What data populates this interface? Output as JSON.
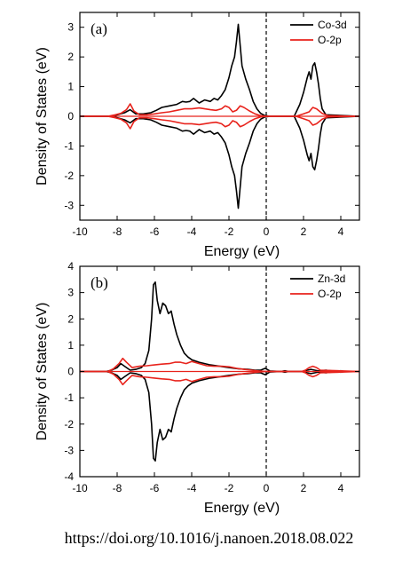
{
  "caption": "https://doi.org/10.1016/j.nanoen.2018.08.022",
  "chart_data": [
    {
      "type": "line",
      "panel_label": "(a)",
      "xlabel": "Energy (eV)",
      "ylabel": "Density of States (eV)",
      "xlim": [
        -10,
        5
      ],
      "ylim": [
        -3.5,
        3.5
      ],
      "xticks": [
        -10,
        -8,
        -6,
        -4,
        -2,
        0,
        2,
        4
      ],
      "yticks": [
        -3,
        -2,
        -1,
        0,
        1,
        2,
        3
      ],
      "fermi_level": 0,
      "legend_position": "top-right",
      "series": [
        {
          "name": "Co-3d",
          "color": "#000000",
          "mirrored": true,
          "x": [
            -10,
            -8.3,
            -8.0,
            -7.6,
            -7.3,
            -7.0,
            -6.6,
            -6.2,
            -5.9,
            -5.6,
            -5.2,
            -4.8,
            -4.5,
            -4.3,
            -4.1,
            -3.9,
            -3.6,
            -3.3,
            -3.0,
            -2.8,
            -2.6,
            -2.4,
            -2.2,
            -2.0,
            -1.85,
            -1.7,
            -1.6,
            -1.5,
            -1.4,
            -1.3,
            -1.1,
            -0.9,
            -0.7,
            -0.5,
            -0.3,
            -0.1,
            0.2,
            1.5,
            1.8,
            2.0,
            2.2,
            2.3,
            2.4,
            2.5,
            2.6,
            2.7,
            2.8,
            2.9,
            3.0,
            3.2,
            5
          ],
          "y": [
            0,
            0,
            0.05,
            0.12,
            0.22,
            0.08,
            0.08,
            0.12,
            0.2,
            0.3,
            0.35,
            0.4,
            0.5,
            0.48,
            0.5,
            0.6,
            0.45,
            0.55,
            0.5,
            0.6,
            0.55,
            0.7,
            0.9,
            1.3,
            1.7,
            2.0,
            2.5,
            3.1,
            2.4,
            1.7,
            1.25,
            0.9,
            0.5,
            0.25,
            0.1,
            0.03,
            0,
            0,
            0.4,
            0.8,
            1.3,
            1.5,
            1.25,
            1.7,
            1.8,
            1.5,
            1.1,
            0.6,
            0.25,
            0.05,
            0
          ]
        },
        {
          "name": "O-2p",
          "color": "#e8231c",
          "mirrored": true,
          "x": [
            -10,
            -8.5,
            -8.1,
            -7.8,
            -7.5,
            -7.3,
            -7.1,
            -6.8,
            -6.4,
            -6.0,
            -5.6,
            -5.2,
            -4.8,
            -4.4,
            -4.0,
            -3.6,
            -3.3,
            -3.0,
            -2.7,
            -2.4,
            -2.2,
            -2.0,
            -1.8,
            -1.6,
            -1.4,
            -1.2,
            -0.9,
            -0.6,
            -0.3,
            0,
            1.6,
            2.0,
            2.3,
            2.5,
            2.7,
            3.0,
            3.3,
            5
          ],
          "y": [
            0,
            0,
            0.05,
            0.1,
            0.22,
            0.42,
            0.18,
            0.05,
            0.05,
            0.08,
            0.12,
            0.15,
            0.2,
            0.25,
            0.25,
            0.28,
            0.25,
            0.22,
            0.2,
            0.25,
            0.35,
            0.3,
            0.15,
            0.2,
            0.35,
            0.3,
            0.18,
            0.08,
            0.02,
            0,
            0,
            0.08,
            0.15,
            0.3,
            0.25,
            0.1,
            0.02,
            0
          ]
        }
      ]
    },
    {
      "type": "line",
      "panel_label": "(b)",
      "xlabel": "Energy (eV)",
      "ylabel": "Density of States (eV)",
      "xlim": [
        -10,
        5
      ],
      "ylim": [
        -4,
        4
      ],
      "xticks": [
        -10,
        -8,
        -6,
        -4,
        -2,
        0,
        2,
        4
      ],
      "yticks": [
        -4,
        -3,
        -2,
        -1,
        0,
        1,
        2,
        3,
        4
      ],
      "fermi_level": 0,
      "legend_position": "top-right",
      "series": [
        {
          "name": "Zn-3d",
          "color": "#000000",
          "mirrored": true,
          "x": [
            -10,
            -8.6,
            -8.3,
            -8.0,
            -7.8,
            -7.6,
            -7.3,
            -7.0,
            -6.7,
            -6.5,
            -6.3,
            -6.15,
            -6.05,
            -5.95,
            -5.85,
            -5.7,
            -5.55,
            -5.4,
            -5.25,
            -5.1,
            -4.95,
            -4.8,
            -4.6,
            -4.4,
            -4.2,
            -4.0,
            -3.6,
            -3.0,
            -2.5,
            -2.0,
            -1.5,
            -1.0,
            -0.6,
            -0.3,
            -0.05,
            0.2,
            0.8,
            1.0,
            1.2,
            2.0,
            2.2,
            2.4,
            2.6,
            2.8,
            3.0,
            3.2,
            3.8,
            4.0,
            4.2,
            5
          ],
          "y": [
            0,
            0,
            0.05,
            0.15,
            0.3,
            0.2,
            0.05,
            0.08,
            0.15,
            0.3,
            0.8,
            2.0,
            3.3,
            3.4,
            2.7,
            2.2,
            2.6,
            2.5,
            2.2,
            2.3,
            1.8,
            1.4,
            1.0,
            0.7,
            0.55,
            0.45,
            0.35,
            0.25,
            0.2,
            0.15,
            0.1,
            0.08,
            0.05,
            0.05,
            0.12,
            0.02,
            0,
            0.03,
            0,
            0,
            0.05,
            0.08,
            0.05,
            0.02,
            0.03,
            0.05,
            0,
            0.03,
            0,
            0
          ]
        },
        {
          "name": "O-2p",
          "color": "#e8231c",
          "mirrored": true,
          "x": [
            -10,
            -8.5,
            -8.2,
            -7.9,
            -7.7,
            -7.5,
            -7.2,
            -6.8,
            -6.4,
            -6.0,
            -5.6,
            -5.2,
            -4.9,
            -4.6,
            -4.3,
            -4.0,
            -3.6,
            -3.2,
            -2.8,
            -2.4,
            -2.0,
            -1.6,
            -1.2,
            -0.8,
            -0.4,
            0,
            1.9,
            2.1,
            2.3,
            2.5,
            2.7,
            2.9,
            5
          ],
          "y": [
            0,
            0,
            0.1,
            0.3,
            0.5,
            0.35,
            0.15,
            0.2,
            0.22,
            0.25,
            0.28,
            0.3,
            0.35,
            0.35,
            0.3,
            0.38,
            0.3,
            0.22,
            0.2,
            0.2,
            0.18,
            0.12,
            0.08,
            0.05,
            0.02,
            0,
            0,
            0.05,
            0.15,
            0.2,
            0.15,
            0.05,
            0
          ]
        }
      ]
    }
  ]
}
